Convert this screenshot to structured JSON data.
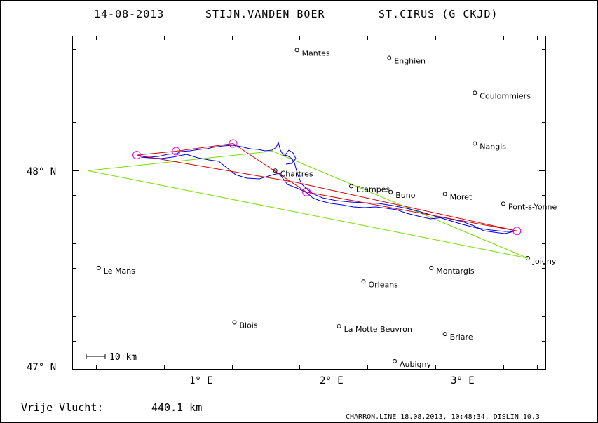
{
  "header": {
    "date": "14-08-2013",
    "pilot": "STIJN.VANDEN BOER",
    "glider": "ST.CIRUS (G CKJD)"
  },
  "axes": {
    "lon_ticks": [
      {
        "value": 1,
        "label": "1° E"
      },
      {
        "value": 2,
        "label": "2° E"
      },
      {
        "value": 3,
        "label": "3° E"
      }
    ],
    "lat_ticks": [
      {
        "value": 47,
        "label": "47° N"
      },
      {
        "value": 48,
        "label": "48° N"
      }
    ],
    "lon_range": [
      0.08,
      3.56
    ],
    "lat_range": [
      46.98,
      48.69
    ]
  },
  "scale_bar": {
    "label": "10 km"
  },
  "cities": [
    {
      "name": "Mantes",
      "lon": 1.73,
      "lat": 48.62
    },
    {
      "name": "Enghien",
      "lon": 2.41,
      "lat": 48.58
    },
    {
      "name": "Coulommiers",
      "lon": 3.04,
      "lat": 48.4
    },
    {
      "name": "Nangis",
      "lon": 3.04,
      "lat": 48.14
    },
    {
      "name": "Chartres",
      "lon": 1.57,
      "lat": 48.0
    },
    {
      "name": "Etampes",
      "lon": 2.13,
      "lat": 47.92
    },
    {
      "name": "Buno",
      "lon": 2.42,
      "lat": 47.89
    },
    {
      "name": "Moret",
      "lon": 2.82,
      "lat": 47.88
    },
    {
      "name": "Pont-s-Yonne",
      "lon": 3.25,
      "lat": 47.83
    },
    {
      "name": "Joigny",
      "lon": 3.43,
      "lat": 47.55
    },
    {
      "name": "Le Mans",
      "lon": 0.27,
      "lat": 47.5
    },
    {
      "name": "Montargis",
      "lon": 2.72,
      "lat": 47.5
    },
    {
      "name": "Orleans",
      "lon": 2.22,
      "lat": 47.43
    },
    {
      "name": "Blois",
      "lon": 1.27,
      "lat": 47.22
    },
    {
      "name": "La Motte Beuvron",
      "lon": 2.04,
      "lat": 47.2
    },
    {
      "name": "Briare",
      "lon": 2.82,
      "lat": 47.16
    },
    {
      "name": "Aubigny",
      "lon": 2.45,
      "lat": 47.02
    }
  ],
  "task": {
    "turnpoints": [
      {
        "lon": 0.55,
        "lat": 48.08
      },
      {
        "lon": 0.84,
        "lat": 48.1
      },
      {
        "lon": 1.26,
        "lat": 48.14
      },
      {
        "lon": 1.8,
        "lat": 47.89
      },
      {
        "lon": 3.35,
        "lat": 47.69
      }
    ],
    "triangle": [
      {
        "lon": 0.19,
        "lat": 48.0
      },
      {
        "lon": 1.55,
        "lat": 48.1
      },
      {
        "lon": 3.43,
        "lat": 47.55
      }
    ]
  },
  "colors": {
    "track": "#0000ee",
    "task_line": "#dd0000",
    "triangle": "#77dd00",
    "turnpoint": "#dd00dd"
  },
  "footer": {
    "distance_label": "Vrije Vlucht:",
    "distance_value": "440.1 km",
    "info": "CHARRON.LINE 18.08.2013, 10:48:34, DISLIN 10.3"
  }
}
